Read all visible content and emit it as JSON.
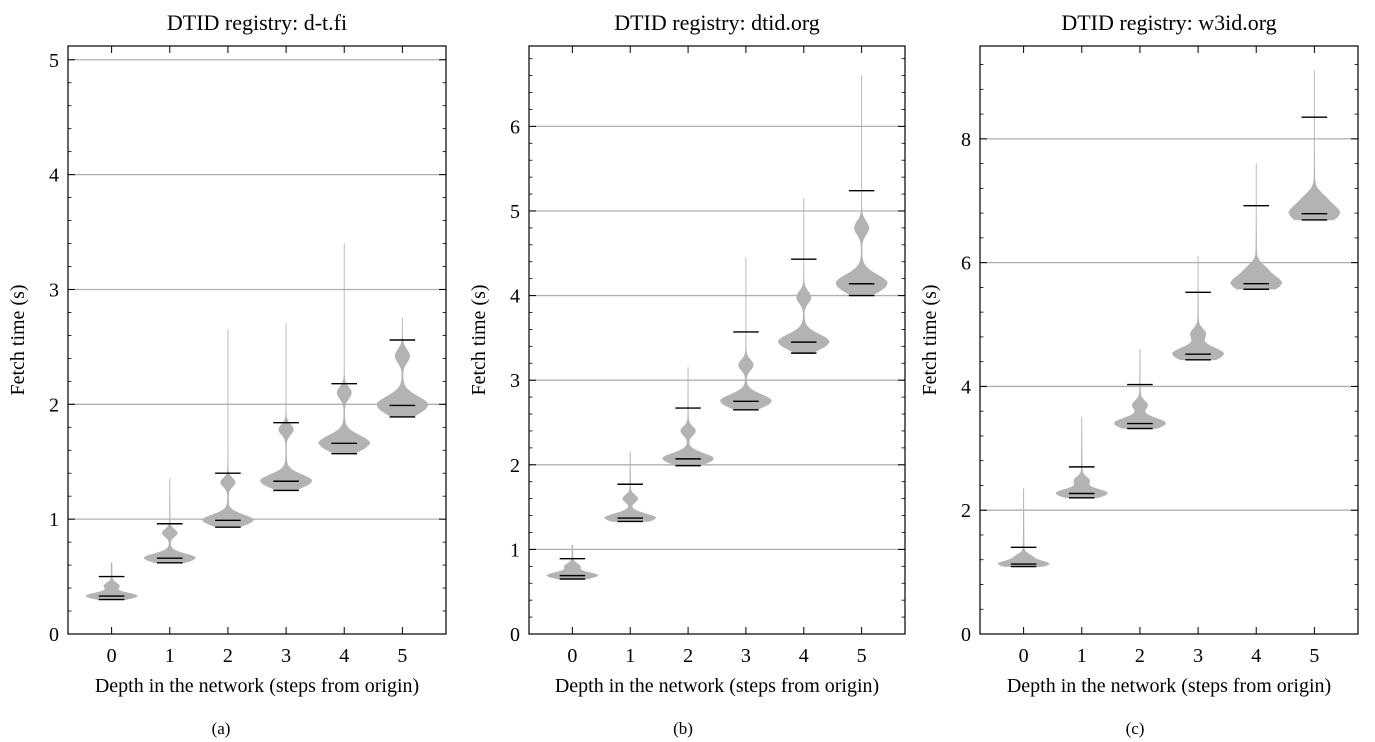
{
  "chart_data": [
    {
      "type": "violin",
      "title": "DTID registry: d-t.fi",
      "caption": "(a)",
      "xlabel": "Depth in the network (steps from origin)",
      "ylabel": "Fetch time (s)",
      "x_ticks": [
        "0",
        "1",
        "2",
        "3",
        "4",
        "5"
      ],
      "y_ticks": [
        "0",
        "1",
        "2",
        "3",
        "4",
        "5"
      ],
      "ylim": [
        0,
        5.12
      ],
      "grid": "horizontal",
      "categories": [
        0,
        1,
        2,
        3,
        4,
        5
      ],
      "violins": [
        {
          "depth": 0,
          "min": 0.3,
          "median": 0.33,
          "max": 0.5,
          "mode": 0.33,
          "secondary_mode": 0.42,
          "tail": 0.62
        },
        {
          "depth": 1,
          "min": 0.62,
          "median": 0.66,
          "max": 0.96,
          "mode": 0.66,
          "secondary_mode": 0.88,
          "tail": 1.35
        },
        {
          "depth": 2,
          "min": 0.93,
          "median": 0.99,
          "max": 1.4,
          "mode": 0.99,
          "secondary_mode": 1.32,
          "tail": 2.65
        },
        {
          "depth": 3,
          "min": 1.25,
          "median": 1.33,
          "max": 1.84,
          "mode": 1.33,
          "secondary_mode": 1.78,
          "tail": 2.7
        },
        {
          "depth": 4,
          "min": 1.57,
          "median": 1.66,
          "max": 2.18,
          "mode": 1.66,
          "secondary_mode": 2.1,
          "tail": 3.4
        },
        {
          "depth": 5,
          "min": 1.89,
          "median": 1.99,
          "max": 2.56,
          "mode": 1.99,
          "secondary_mode": 2.42,
          "tail": 2.75
        }
      ]
    },
    {
      "type": "violin",
      "title": "DTID registry: dtid.org",
      "caption": "(b)",
      "xlabel": "Depth in the network (steps from origin)",
      "ylabel": "Fetch time (s)",
      "x_ticks": [
        "0",
        "1",
        "2",
        "3",
        "4",
        "5"
      ],
      "y_ticks": [
        "0",
        "1",
        "2",
        "3",
        "4",
        "5",
        "6"
      ],
      "ylim": [
        0,
        6.95
      ],
      "grid": "horizontal",
      "categories": [
        0,
        1,
        2,
        3,
        4,
        5
      ],
      "violins": [
        {
          "depth": 0,
          "min": 0.65,
          "median": 0.69,
          "max": 0.89,
          "mode": 0.69,
          "secondary_mode": 0.8,
          "tail": 1.05
        },
        {
          "depth": 1,
          "min": 1.33,
          "median": 1.37,
          "max": 1.77,
          "mode": 1.37,
          "secondary_mode": 1.6,
          "tail": 2.15
        },
        {
          "depth": 2,
          "min": 1.99,
          "median": 2.07,
          "max": 2.67,
          "mode": 2.07,
          "secondary_mode": 2.4,
          "tail": 3.15
        },
        {
          "depth": 3,
          "min": 2.65,
          "median": 2.75,
          "max": 3.57,
          "mode": 2.75,
          "secondary_mode": 3.18,
          "tail": 4.45
        },
        {
          "depth": 4,
          "min": 3.32,
          "median": 3.45,
          "max": 4.43,
          "mode": 3.45,
          "secondary_mode": 3.98,
          "tail": 5.15
        },
        {
          "depth": 5,
          "min": 4.0,
          "median": 4.14,
          "max": 5.24,
          "mode": 4.14,
          "secondary_mode": 4.8,
          "tail": 6.6
        }
      ]
    },
    {
      "type": "violin",
      "title": "DTID registry: w3id.org",
      "caption": "(c)",
      "xlabel": "Depth in the network (steps from origin)",
      "ylabel": "Fetch time (s)",
      "x_ticks": [
        "0",
        "1",
        "2",
        "3",
        "4",
        "5"
      ],
      "y_ticks": [
        "0",
        "2",
        "4",
        "6",
        "8"
      ],
      "ylim": [
        0,
        9.5
      ],
      "grid": "horizontal",
      "categories": [
        0,
        1,
        2,
        3,
        4,
        5
      ],
      "violins": [
        {
          "depth": 0,
          "min": 1.09,
          "median": 1.13,
          "max": 1.4,
          "mode": 1.13,
          "secondary_mode": 1.25,
          "tail": 2.35
        },
        {
          "depth": 1,
          "min": 2.2,
          "median": 2.27,
          "max": 2.7,
          "mode": 2.27,
          "secondary_mode": 2.48,
          "tail": 3.5
        },
        {
          "depth": 2,
          "min": 3.32,
          "median": 3.4,
          "max": 4.03,
          "mode": 3.4,
          "secondary_mode": 3.7,
          "tail": 4.6
        },
        {
          "depth": 3,
          "min": 4.43,
          "median": 4.52,
          "max": 5.52,
          "mode": 4.52,
          "secondary_mode": 4.85,
          "tail": 6.1
        },
        {
          "depth": 4,
          "min": 5.57,
          "median": 5.66,
          "max": 6.92,
          "mode": 5.66,
          "secondary_mode": 5.9,
          "tail": 7.6
        },
        {
          "depth": 5,
          "min": 6.69,
          "median": 6.79,
          "max": 8.35,
          "mode": 6.79,
          "secondary_mode": 7.05,
          "tail": 9.1
        }
      ]
    }
  ]
}
